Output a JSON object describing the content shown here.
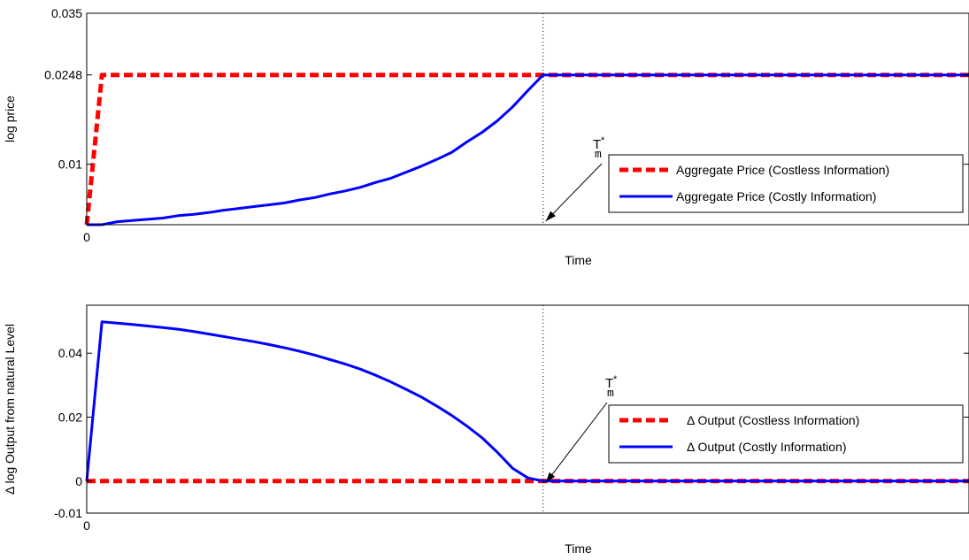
{
  "colors": {
    "costless": "#ff0000",
    "costly": "#0000ff",
    "axis": "#000000",
    "marker_line": "#000000"
  },
  "chart_data": [
    {
      "type": "line",
      "ylabel": "log price",
      "xlabel": "Time",
      "x_tick_labels": [
        "0"
      ],
      "y_ticks": [
        0.01,
        0.0248,
        0.035
      ],
      "y_tick_labels": [
        "0.01",
        "0.0248",
        "0.035"
      ],
      "xlim": [
        0,
        58
      ],
      "ylim": [
        0,
        0.035
      ],
      "annotation": {
        "text": "T",
        "superscript": "*",
        "subscript": "m",
        "x": 30
      },
      "legend": {
        "position": "right"
      },
      "series": [
        {
          "name": "Aggregate Price (Costless Information)",
          "style": "dashed",
          "color": "#ff0000",
          "x": [
            0,
            1,
            58
          ],
          "y": [
            0,
            0.0248,
            0.0248
          ]
        },
        {
          "name": "Aggregate Price (Costly Information)",
          "style": "solid",
          "color": "#0000ff",
          "x": [
            0,
            1,
            2,
            3,
            4,
            5,
            6,
            7,
            8,
            9,
            10,
            11,
            12,
            13,
            14,
            15,
            16,
            17,
            18,
            19,
            20,
            21,
            22,
            23,
            24,
            25,
            26,
            27,
            28,
            29,
            30,
            58
          ],
          "y": [
            0,
            0,
            0.0005,
            0.0007,
            0.0009,
            0.0011,
            0.0015,
            0.0017,
            0.002,
            0.0024,
            0.0027,
            0.003,
            0.0033,
            0.0036,
            0.0041,
            0.0045,
            0.0051,
            0.0056,
            0.0062,
            0.007,
            0.0077,
            0.0087,
            0.0097,
            0.0108,
            0.012,
            0.0137,
            0.0153,
            0.0172,
            0.0195,
            0.0222,
            0.0248,
            0.0248
          ]
        }
      ]
    },
    {
      "type": "line",
      "ylabel": "Δ log Output from natural Level",
      "xlabel": "Time",
      "x_tick_labels": [
        "0"
      ],
      "y_ticks": [
        -0.01,
        0,
        0.02,
        0.04
      ],
      "y_tick_labels": [
        "-0.01",
        "0",
        "0.02",
        "0.04"
      ],
      "xlim": [
        0,
        58
      ],
      "ylim": [
        -0.01,
        0.055
      ],
      "annotation": {
        "text": "T",
        "superscript": "*",
        "subscript": "m",
        "x": 30
      },
      "legend": {
        "position": "right"
      },
      "series": [
        {
          "name": "Δ Output (Costless Information)",
          "style": "dashed",
          "color": "#ff0000",
          "x": [
            0,
            58
          ],
          "y": [
            0,
            0
          ]
        },
        {
          "name": "Δ Output (Costly Information)",
          "style": "solid",
          "color": "#0000ff",
          "x": [
            0,
            1,
            2,
            3,
            4,
            5,
            6,
            7,
            8,
            9,
            10,
            11,
            12,
            13,
            14,
            15,
            16,
            17,
            18,
            19,
            20,
            21,
            22,
            23,
            24,
            25,
            26,
            27,
            28,
            29,
            30,
            58
          ],
          "y": [
            0,
            0.0498,
            0.0494,
            0.049,
            0.0485,
            0.048,
            0.0475,
            0.0468,
            0.046,
            0.0452,
            0.0444,
            0.0436,
            0.0427,
            0.0417,
            0.0406,
            0.0394,
            0.038,
            0.0366,
            0.035,
            0.0331,
            0.031,
            0.0287,
            0.0263,
            0.0235,
            0.0205,
            0.0172,
            0.0135,
            0.009,
            0.004,
            0.001,
            0,
            0
          ]
        }
      ]
    }
  ]
}
